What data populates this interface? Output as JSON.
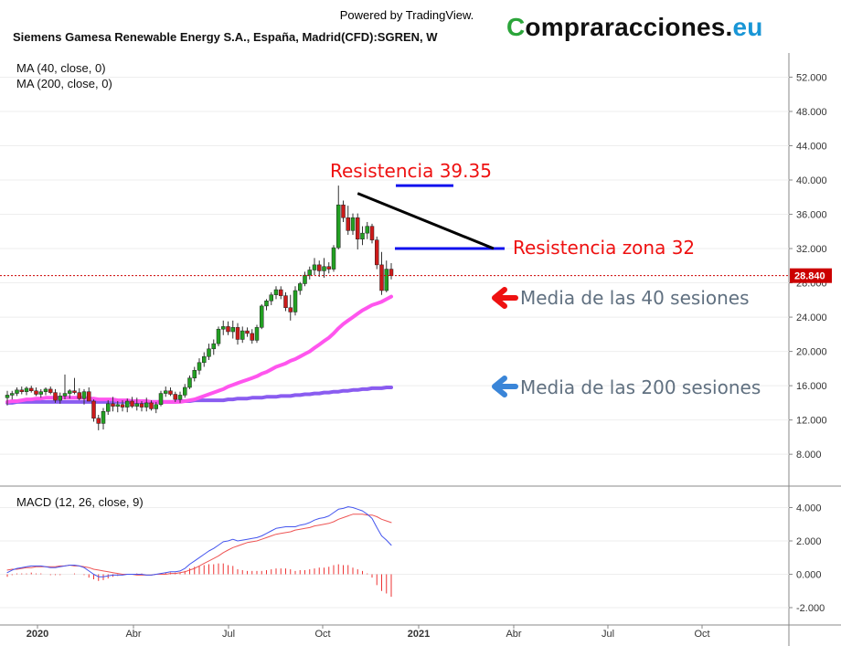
{
  "header": {
    "powered_by": "Powered by TradingView.",
    "symbol_title": "Siemens Gamesa Renewable Energy S.A., España, Madrid(CFD):SGREN, W",
    "brand": {
      "first": "C",
      "middle": "ompraracciones.",
      "tld": "eu"
    }
  },
  "indicators": {
    "ma40_label": "MA (40, close, 0)",
    "ma200_label": "MA (200, close, 0)",
    "macd_label": "MACD (12, 26, close, 9)"
  },
  "colors": {
    "up": "#22a022",
    "down": "#cc1a1a",
    "ma40": "#ff55ee",
    "ma200": "#8a5cf0",
    "level": "#1111ee",
    "trendline": "#000000",
    "annotation_red": "#ee1111",
    "annotation_gray": "#607080",
    "arrow_red": "#ee1111",
    "arrow_blue": "#3a85d8",
    "macd_line": "#4455ee",
    "signal_line": "#ee5555",
    "histogram": "#ee3333",
    "price_line": "#cc0000"
  },
  "chart_data": [
    {
      "type": "candlestick",
      "title": "Siemens Gamesa Renewable Energy S.A., España, Madrid(CFD):SGREN, W",
      "x_ticks": [
        "2020",
        "Abr",
        "Jul",
        "Oct",
        "2021",
        "Abr",
        "Jul",
        "Oct"
      ],
      "bold_x_ticks": [
        "2020",
        "2021"
      ],
      "y_ticks": [
        "52.000",
        "48.000",
        "44.000",
        "40.000",
        "36.000",
        "32.000",
        "28.000",
        "24.000",
        "20.000",
        "16.000",
        "12.000",
        "8.000"
      ],
      "ylim": [
        4,
        54
      ],
      "grid": true,
      "last_price": "28.840",
      "candles": [
        [
          14.6,
          15.4,
          13.7,
          14.9
        ],
        [
          14.9,
          15.4,
          14.4,
          15.1
        ],
        [
          15.1,
          15.8,
          14.8,
          15.5
        ],
        [
          15.5,
          15.9,
          15.0,
          15.3
        ],
        [
          15.3,
          15.9,
          14.9,
          15.7
        ],
        [
          15.7,
          16.0,
          15.2,
          15.4
        ],
        [
          15.4,
          15.8,
          14.8,
          15.0
        ],
        [
          15.0,
          15.6,
          14.6,
          15.3
        ],
        [
          15.3,
          15.8,
          14.9,
          15.6
        ],
        [
          15.6,
          15.9,
          15.0,
          15.2
        ],
        [
          15.2,
          15.6,
          14.0,
          14.3
        ],
        [
          14.3,
          15.2,
          13.9,
          14.8
        ],
        [
          14.8,
          17.3,
          14.4,
          15.1
        ],
        [
          15.1,
          15.6,
          14.5,
          15.4
        ],
        [
          15.4,
          16.9,
          15.0,
          15.2
        ],
        [
          15.2,
          15.7,
          14.3,
          14.5
        ],
        [
          14.5,
          15.6,
          13.8,
          15.3
        ],
        [
          15.3,
          15.8,
          14.4,
          14.2
        ],
        [
          14.2,
          14.4,
          11.8,
          12.2
        ],
        [
          12.2,
          12.6,
          10.8,
          11.6
        ],
        [
          11.6,
          13.4,
          10.9,
          13.0
        ],
        [
          13.0,
          14.3,
          12.6,
          13.9
        ],
        [
          13.9,
          14.7,
          13.0,
          13.6
        ],
        [
          13.6,
          14.2,
          12.9,
          13.8
        ],
        [
          13.8,
          14.3,
          13.0,
          13.5
        ],
        [
          13.5,
          14.5,
          12.9,
          14.2
        ],
        [
          14.2,
          14.7,
          13.4,
          13.6
        ],
        [
          13.6,
          14.6,
          13.1,
          13.9
        ],
        [
          13.9,
          14.2,
          13.0,
          13.5
        ],
        [
          13.5,
          14.6,
          13.0,
          14.0
        ],
        [
          14.0,
          14.3,
          13.1,
          13.3
        ],
        [
          13.3,
          14.1,
          12.8,
          13.8
        ],
        [
          13.8,
          15.4,
          13.6,
          15.1
        ],
        [
          15.1,
          15.9,
          14.7,
          15.4
        ],
        [
          15.4,
          15.8,
          14.8,
          15.0
        ],
        [
          15.0,
          15.3,
          14.1,
          14.4
        ],
        [
          14.4,
          15.3,
          14.0,
          14.9
        ],
        [
          14.9,
          16.2,
          14.6,
          15.8
        ],
        [
          15.8,
          17.2,
          15.6,
          16.9
        ],
        [
          16.9,
          18.2,
          16.5,
          17.8
        ],
        [
          17.8,
          19.2,
          17.3,
          18.7
        ],
        [
          18.7,
          19.9,
          18.2,
          19.4
        ],
        [
          19.4,
          20.9,
          19.0,
          20.3
        ],
        [
          20.3,
          21.4,
          19.6,
          20.9
        ],
        [
          20.9,
          22.9,
          20.6,
          22.6
        ],
        [
          22.6,
          23.6,
          21.9,
          22.9
        ],
        [
          22.9,
          23.5,
          21.9,
          22.3
        ],
        [
          22.3,
          23.6,
          21.5,
          22.8
        ],
        [
          22.8,
          23.3,
          20.8,
          21.4
        ],
        [
          21.4,
          22.9,
          21.0,
          22.4
        ],
        [
          22.4,
          22.8,
          21.7,
          22.1
        ],
        [
          22.1,
          22.6,
          20.9,
          21.3
        ],
        [
          21.3,
          23.1,
          21.0,
          22.8
        ],
        [
          22.8,
          25.5,
          22.6,
          25.3
        ],
        [
          25.3,
          26.1,
          24.8,
          25.9
        ],
        [
          25.9,
          26.9,
          25.4,
          26.6
        ],
        [
          26.6,
          27.6,
          26.1,
          27.2
        ],
        [
          27.2,
          27.6,
          26.1,
          26.5
        ],
        [
          26.5,
          26.9,
          24.7,
          25.1
        ],
        [
          25.1,
          26.6,
          23.6,
          24.6
        ],
        [
          24.6,
          27.6,
          24.2,
          27.1
        ],
        [
          27.1,
          28.1,
          26.6,
          27.9
        ],
        [
          27.9,
          29.3,
          27.6,
          28.9
        ],
        [
          28.9,
          29.9,
          28.4,
          29.5
        ],
        [
          29.5,
          30.9,
          28.9,
          30.1
        ],
        [
          30.1,
          30.6,
          28.7,
          29.4
        ],
        [
          29.4,
          30.9,
          28.6,
          29.9
        ],
        [
          29.9,
          30.4,
          29.1,
          29.6
        ],
        [
          29.6,
          32.4,
          29.3,
          32.1
        ],
        [
          32.1,
          39.35,
          31.9,
          37.1
        ],
        [
          37.1,
          37.6,
          35.1,
          35.6
        ],
        [
          35.6,
          37.0,
          33.6,
          34.1
        ],
        [
          34.1,
          36.1,
          33.6,
          35.6
        ],
        [
          35.6,
          36.1,
          31.9,
          33.1
        ],
        [
          33.1,
          34.6,
          32.4,
          33.8
        ],
        [
          33.8,
          35.1,
          33.1,
          34.6
        ],
        [
          34.6,
          34.9,
          32.6,
          33.0
        ],
        [
          33.0,
          33.4,
          29.6,
          30.1
        ],
        [
          30.1,
          31.6,
          26.6,
          27.1
        ],
        [
          27.1,
          30.6,
          26.9,
          29.6
        ],
        [
          29.6,
          30.3,
          28.4,
          28.84
        ]
      ],
      "ma40": [
        14.1,
        14.2,
        14.2,
        14.3,
        14.4,
        14.4,
        14.5,
        14.5,
        14.6,
        14.6,
        14.6,
        14.6,
        14.6,
        14.6,
        14.6,
        14.6,
        14.6,
        14.5,
        14.5,
        14.4,
        14.4,
        14.4,
        14.4,
        14.3,
        14.3,
        14.3,
        14.2,
        14.2,
        14.2,
        14.2,
        14.1,
        14.1,
        14.1,
        14.1,
        14.1,
        14.1,
        14.1,
        14.2,
        14.3,
        14.4,
        14.6,
        14.8,
        15.0,
        15.2,
        15.4,
        15.6,
        15.9,
        16.1,
        16.3,
        16.5,
        16.7,
        16.9,
        17.1,
        17.4,
        17.6,
        17.9,
        18.2,
        18.4,
        18.6,
        18.9,
        19.1,
        19.4,
        19.7,
        20.0,
        20.4,
        20.8,
        21.2,
        21.6,
        22.1,
        22.7,
        23.2,
        23.6,
        24.0,
        24.4,
        24.8,
        25.1,
        25.4,
        25.6,
        25.8,
        26.1,
        26.4
      ],
      "ma200": [
        14.0,
        14.0,
        14.1,
        14.1,
        14.1,
        14.1,
        14.1,
        14.1,
        14.1,
        14.1,
        14.1,
        14.1,
        14.1,
        14.1,
        14.1,
        14.1,
        14.1,
        14.1,
        14.1,
        14.1,
        14.1,
        14.1,
        14.1,
        14.1,
        14.1,
        14.1,
        14.1,
        14.1,
        14.1,
        14.1,
        14.1,
        14.1,
        14.1,
        14.1,
        14.1,
        14.1,
        14.2,
        14.2,
        14.2,
        14.3,
        14.3,
        14.3,
        14.3,
        14.3,
        14.3,
        14.3,
        14.4,
        14.4,
        14.5,
        14.5,
        14.5,
        14.6,
        14.6,
        14.6,
        14.7,
        14.7,
        14.7,
        14.8,
        14.8,
        14.8,
        14.9,
        14.9,
        15.0,
        15.0,
        15.1,
        15.1,
        15.2,
        15.2,
        15.3,
        15.3,
        15.4,
        15.4,
        15.5,
        15.5,
        15.6,
        15.6,
        15.7,
        15.7,
        15.7,
        15.8,
        15.8
      ],
      "annotations": [
        {
          "text": "Resistencia 39.35",
          "level": 39.35
        },
        {
          "text": "Resistencia zona 32",
          "level": 32.0
        },
        {
          "text": "Media de las 40 sesiones",
          "level": 25.9
        },
        {
          "text": "Media de las 200 sesiones",
          "level": 15.8
        }
      ],
      "trendline": {
        "from": [
          37.8,
          73
        ],
        "to": [
          32.0,
          81
        ]
      }
    },
    {
      "type": "line",
      "title": "MACD (12, 26, close, 9)",
      "y_ticks": [
        "4.000",
        "2.000",
        "0.000",
        "-2.000"
      ],
      "ylim": [
        -3,
        5
      ],
      "macd": [
        0.1,
        0.25,
        0.35,
        0.4,
        0.45,
        0.5,
        0.5,
        0.5,
        0.45,
        0.4,
        0.4,
        0.45,
        0.5,
        0.55,
        0.55,
        0.5,
        0.4,
        0.2,
        0.0,
        -0.15,
        -0.15,
        -0.1,
        -0.05,
        -0.05,
        -0.05,
        0.0,
        0.0,
        0.0,
        0.0,
        -0.05,
        -0.05,
        0.0,
        0.05,
        0.1,
        0.15,
        0.15,
        0.2,
        0.35,
        0.6,
        0.8,
        1.0,
        1.2,
        1.4,
        1.55,
        1.75,
        1.95,
        2.0,
        2.1,
        2.0,
        2.05,
        2.1,
        2.15,
        2.2,
        2.3,
        2.45,
        2.6,
        2.75,
        2.8,
        2.85,
        2.85,
        2.85,
        2.95,
        3.0,
        3.1,
        3.25,
        3.35,
        3.4,
        3.5,
        3.7,
        3.9,
        3.95,
        4.05,
        4.0,
        3.9,
        3.8,
        3.6,
        3.35,
        2.8,
        2.3,
        2.05,
        1.75
      ],
      "signal": [
        0.25,
        0.3,
        0.3,
        0.35,
        0.4,
        0.4,
        0.45,
        0.45,
        0.45,
        0.45,
        0.45,
        0.5,
        0.5,
        0.55,
        0.5,
        0.5,
        0.45,
        0.4,
        0.3,
        0.25,
        0.2,
        0.15,
        0.1,
        0.05,
        0.0,
        0.0,
        0.0,
        -0.05,
        -0.05,
        -0.05,
        -0.05,
        0.0,
        0.0,
        0.0,
        0.05,
        0.05,
        0.1,
        0.15,
        0.25,
        0.35,
        0.5,
        0.65,
        0.8,
        0.95,
        1.1,
        1.3,
        1.45,
        1.6,
        1.7,
        1.8,
        1.9,
        1.95,
        2.0,
        2.1,
        2.2,
        2.3,
        2.4,
        2.45,
        2.5,
        2.55,
        2.65,
        2.7,
        2.75,
        2.8,
        2.9,
        2.95,
        3.0,
        3.05,
        3.15,
        3.3,
        3.4,
        3.5,
        3.6,
        3.6,
        3.6,
        3.55,
        3.55,
        3.45,
        3.3,
        3.2,
        3.1
      ],
      "histogram": [
        -0.15,
        -0.05,
        0.05,
        0.05,
        0.05,
        0.1,
        0.05,
        0.05,
        0.0,
        -0.05,
        -0.05,
        -0.05,
        0.0,
        0.0,
        0.05,
        0.0,
        -0.05,
        -0.2,
        -0.3,
        -0.4,
        -0.35,
        -0.25,
        -0.15,
        -0.1,
        -0.05,
        0.0,
        0.0,
        0.05,
        0.05,
        0.0,
        0.0,
        0.0,
        0.05,
        0.1,
        0.1,
        0.1,
        0.1,
        0.2,
        0.35,
        0.45,
        0.5,
        0.55,
        0.6,
        0.6,
        0.65,
        0.65,
        0.55,
        0.5,
        0.3,
        0.25,
        0.2,
        0.2,
        0.2,
        0.2,
        0.25,
        0.3,
        0.35,
        0.35,
        0.35,
        0.3,
        0.2,
        0.25,
        0.25,
        0.3,
        0.35,
        0.4,
        0.4,
        0.45,
        0.55,
        0.6,
        0.55,
        0.55,
        0.4,
        0.3,
        0.2,
        0.05,
        -0.2,
        -0.65,
        -1.0,
        -1.15,
        -1.35
      ]
    }
  ]
}
